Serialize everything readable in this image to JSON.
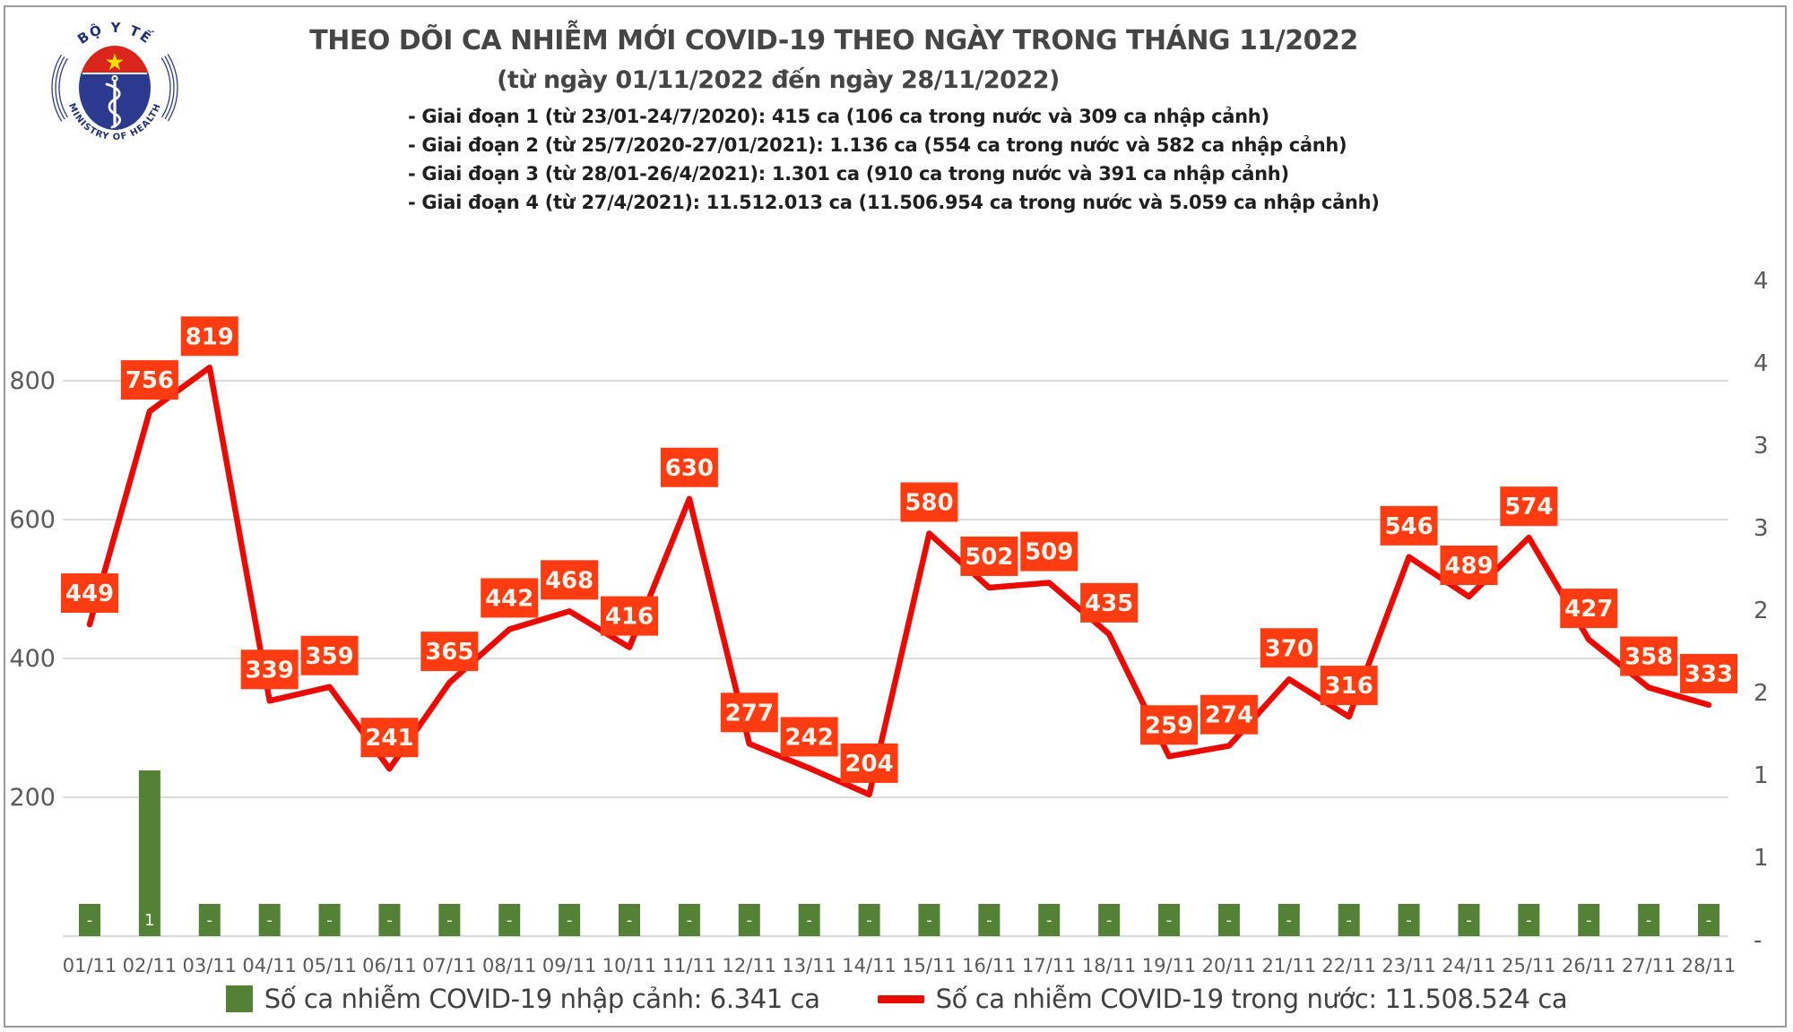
{
  "logo": {
    "top_text": "BỘ Y TẾ",
    "bottom_text": "MINISTRY OF HEALTH"
  },
  "header": {
    "title": "THEO DÕI CA NHIỄM MỚI COVID-19 THEO NGÀY TRONG THÁNG 11/2022",
    "subtitle": "(từ ngày 01/11/2022 đến ngày 28/11/2022)",
    "phases": [
      "- Giai đoạn 1 (từ 23/01-24/7/2020): 415 ca (106 ca trong nước và 309 ca nhập cảnh)",
      "- Giai đoạn 2 (từ 25/7/2020-27/01/2021): 1.136 ca (554 ca trong nước và 582 ca nhập cảnh)",
      "- Giai đoạn 3 (từ 28/01-26/4/2021): 1.301 ca (910 ca trong nước và 391 ca nhập cảnh)",
      "- Giai đoạn 4 (từ 27/4/2021): 11.512.013 ca (11.506.954 ca trong nước và 5.059 ca nhập cảnh)"
    ]
  },
  "chart_data": {
    "type": "combo",
    "title": "THEO DÕI CA NHIỄM MỚI COVID-19 THEO NGÀY TRONG THÁNG 11/2022",
    "categories": [
      "01/11",
      "02/11",
      "03/11",
      "04/11",
      "05/11",
      "06/11",
      "07/11",
      "08/11",
      "09/11",
      "10/11",
      "11/11",
      "12/11",
      "13/11",
      "14/11",
      "15/11",
      "16/11",
      "17/11",
      "18/11",
      "19/11",
      "20/11",
      "21/11",
      "22/11",
      "23/11",
      "24/11",
      "25/11",
      "26/11",
      "27/11",
      "28/11"
    ],
    "series": [
      {
        "name": "Số ca nhiễm COVID-19 nhập cảnh",
        "type": "bar",
        "color": "#538135",
        "data_labels": [
          "-",
          "1",
          "-",
          "-",
          "-",
          "-",
          "-",
          "-",
          "-",
          "-",
          "-",
          "-",
          "-",
          "-",
          "-",
          "-",
          "-",
          "-",
          "-",
          "-",
          "-",
          "-",
          "-",
          "-",
          "-",
          "-",
          "-",
          "-"
        ],
        "legend_label": "Số ca nhiễm COVID-19 nhập cảnh: 6.341 ca",
        "total_display": "6.341 ca"
      },
      {
        "name": "Số ca nhiễm COVID-19 trong nước",
        "type": "line",
        "color": "#EB0A00",
        "label_box_color": "#FF3B12",
        "label_text_color": "#FFF3EA",
        "values": [
          449,
          756,
          819,
          339,
          359,
          241,
          365,
          442,
          468,
          416,
          630,
          277,
          242,
          204,
          580,
          502,
          509,
          435,
          259,
          274,
          370,
          316,
          546,
          489,
          574,
          427,
          358,
          333
        ],
        "legend_label": "Số ca nhiễm COVID-19 trong nước: 11.508.524 ca",
        "total_display": "11.508.524 ca"
      }
    ],
    "left_axis_ticks": [
      200,
      400,
      600,
      800
    ],
    "right_axis_tick_labels": [
      "4",
      "4",
      "3",
      "3",
      "2",
      "2",
      "1",
      "1",
      "-"
    ],
    "ylim": [
      0,
      1000
    ],
    "grid": "horizontal",
    "grid_color": "#DCDCDC",
    "axis_text_color": "#595959",
    "legend_position": "bottom"
  }
}
